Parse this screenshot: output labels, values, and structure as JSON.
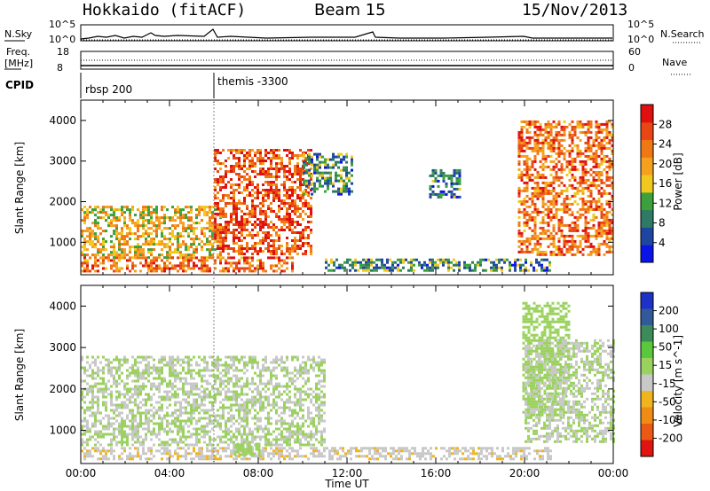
{
  "header": {
    "station": "Hokkaido (fitACF)",
    "beam": "Beam 15",
    "date": "15/Nov/2013"
  },
  "top_strip": {
    "nsky_label": "N.Sky",
    "nsky_ticks": [
      "10^5",
      "10^0"
    ],
    "nsearch_label": "N.Search",
    "freq_label_top": "Freq.",
    "freq_label_bottom": "[MHz]",
    "freq_ticks": [
      "18",
      "8"
    ],
    "nave_ticks": [
      "60",
      "0"
    ],
    "nave_label": "Nave",
    "cpid_label": "CPID",
    "cpid_entries": [
      {
        "name": "rbsp 200",
        "start_hour": 0
      },
      {
        "name": "themis -3300",
        "start_hour": 6
      }
    ]
  },
  "chart_data": [
    {
      "type": "heatmap",
      "title": "",
      "xlabel": "",
      "ylabel": "Slant Range [km]",
      "x_range_hours": [
        0,
        24
      ],
      "ylim": [
        200,
        4500
      ],
      "y_ticks": [
        1000,
        2000,
        3000,
        4000
      ],
      "colorbar": {
        "label": "Power [dB]",
        "ticks": [
          4,
          8,
          12,
          16,
          20,
          24,
          28
        ],
        "colors": [
          "#0a14e6",
          "#1e46a0",
          "#2e7a64",
          "#3ca03c",
          "#f0c81e",
          "#f5a01e",
          "#f07814",
          "#e84614",
          "#e01010"
        ]
      },
      "echo_regions": [
        {
          "label": "evening-dusk band",
          "x_start": 0.0,
          "x_end": 6.3,
          "y_low": 650,
          "y_high": 1900,
          "level": 18
        },
        {
          "label": "near-range band",
          "x_start": 0.0,
          "x_end": 9.5,
          "y_low": 300,
          "y_high": 650,
          "level": 24
        },
        {
          "label": "post-6h flare",
          "x_start": 6.0,
          "x_end": 10.4,
          "y_low": 700,
          "y_high": 3300,
          "level": 26
        },
        {
          "label": "mid-range patch",
          "x_start": 10.0,
          "x_end": 12.2,
          "y_low": 2200,
          "y_high": 3200,
          "level": 10
        },
        {
          "label": "afternoon arc",
          "x_start": 15.7,
          "x_end": 17.1,
          "y_low": 2100,
          "y_high": 2800,
          "level": 8
        },
        {
          "label": "near-range band (2)",
          "x_start": 11.0,
          "x_end": 21.2,
          "y_low": 300,
          "y_high": 600,
          "level": 10
        },
        {
          "label": "dawn band",
          "x_start": 19.7,
          "x_end": 24.0,
          "y_low": 700,
          "y_high": 4000,
          "level": 24
        }
      ]
    },
    {
      "type": "heatmap",
      "title": "",
      "xlabel": "Time UT",
      "ylabel": "Slant Range [km]",
      "x_range_hours": [
        0,
        24
      ],
      "x_ticks": [
        "00:00",
        "04:00",
        "08:00",
        "12:00",
        "16:00",
        "20:00",
        "00:00"
      ],
      "ylim": [
        200,
        4500
      ],
      "y_ticks": [
        1000,
        2000,
        3000,
        4000
      ],
      "colorbar": {
        "label": "Velocity [m s^-1]",
        "ticks": [
          200,
          100,
          50,
          15,
          -15,
          -50,
          -100,
          -200
        ],
        "colors": [
          "#1e32c8",
          "#325a9a",
          "#3c8c5a",
          "#5ac83c",
          "#9bd25f",
          "#c8c8c8",
          "#f0b41e",
          "#f08c14",
          "#eb5a14",
          "#e11414"
        ]
      },
      "echo_regions": [
        {
          "label": "ground scatter band",
          "x_start": 0.0,
          "x_end": 11.0,
          "y_low": 650,
          "y_high": 2800,
          "level": 0
        },
        {
          "label": "near-range band",
          "x_start": 0.0,
          "x_end": 21.2,
          "y_low": 300,
          "y_high": 600,
          "level": -40
        },
        {
          "label": "morning green patch",
          "x_start": 6.9,
          "x_end": 8.1,
          "y_low": 400,
          "y_high": 700,
          "level": 30
        },
        {
          "label": "dawn green arc",
          "x_start": 19.9,
          "x_end": 22.0,
          "y_low": 1300,
          "y_high": 4100,
          "level": 30
        },
        {
          "label": "dawn ground scatter",
          "x_start": 20.0,
          "x_end": 24.0,
          "y_low": 700,
          "y_high": 3200,
          "level": 0
        }
      ]
    }
  ]
}
